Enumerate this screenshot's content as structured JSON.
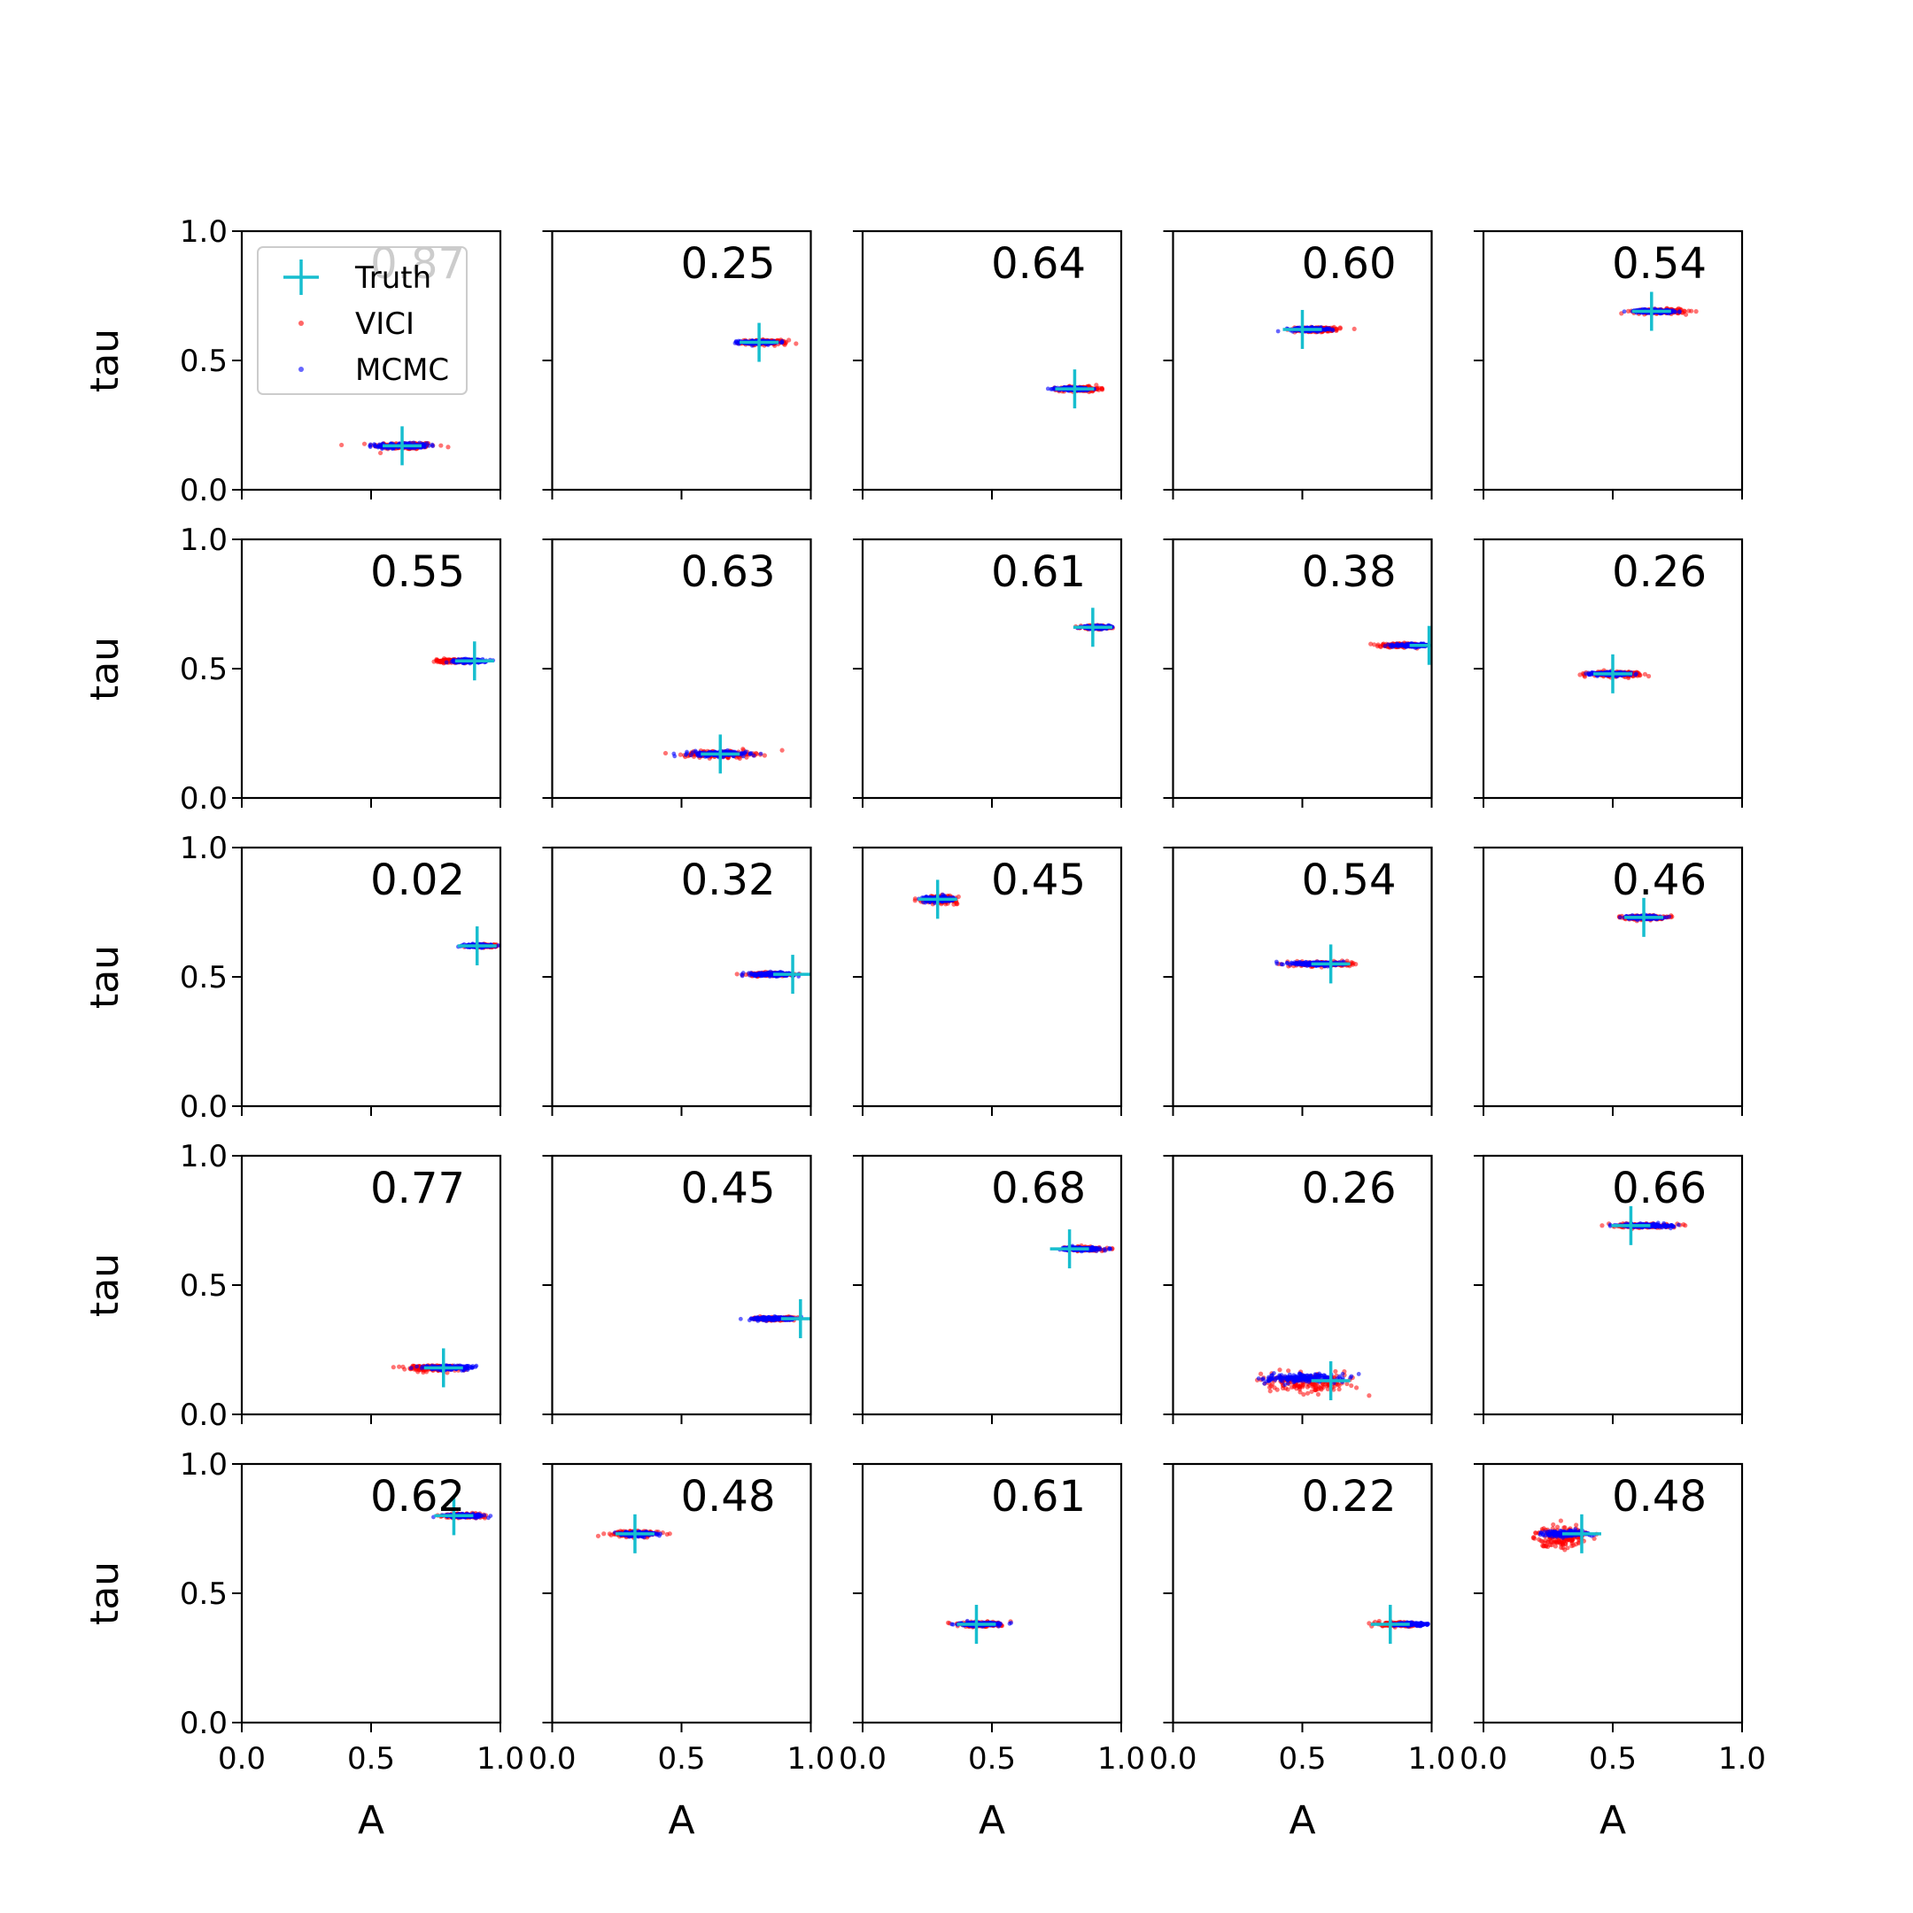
{
  "chart_data": {
    "type": "scatter",
    "grid": false,
    "rows": 5,
    "cols": 5,
    "xlabel": "A",
    "ylabel": "tau",
    "xlim": [
      0.0,
      1.0
    ],
    "ylim": [
      0.0,
      1.0
    ],
    "xticks": [
      "0.0",
      "0.5",
      "1.0"
    ],
    "yticks": [
      "0.0",
      "0.5",
      "1.0"
    ],
    "legend": {
      "placement": "top-left of first panel",
      "entries": [
        {
          "label": "Truth",
          "color": "#17becf",
          "marker": "plus"
        },
        {
          "label": "VICI",
          "color": "#ff0000",
          "marker": "dot"
        },
        {
          "label": "MCMC",
          "color": "#0000ff",
          "marker": "dot"
        }
      ]
    },
    "colors": {
      "truth": "#17becf",
      "vici": "#ff0000",
      "mcmc": "#0000ff"
    },
    "panels": [
      {
        "overlap": "0.87",
        "truth": [
          0.62,
          0.17
        ],
        "vici": {
          "center": [
            0.63,
            0.17
          ],
          "spread": [
            0.11,
            0.012
          ]
        },
        "mcmc": {
          "center": [
            0.62,
            0.17
          ],
          "spread": [
            0.09,
            0.009
          ]
        }
      },
      {
        "overlap": "0.25",
        "truth": [
          0.8,
          0.57
        ],
        "vici": {
          "center": [
            0.82,
            0.57
          ],
          "spread": [
            0.08,
            0.008
          ]
        },
        "mcmc": {
          "center": [
            0.79,
            0.57
          ],
          "spread": [
            0.06,
            0.006
          ]
        }
      },
      {
        "overlap": "0.64",
        "truth": [
          0.82,
          0.39
        ],
        "vici": {
          "center": [
            0.84,
            0.39
          ],
          "spread": [
            0.07,
            0.008
          ]
        },
        "mcmc": {
          "center": [
            0.82,
            0.39
          ],
          "spread": [
            0.06,
            0.006
          ]
        }
      },
      {
        "overlap": "0.60",
        "truth": [
          0.5,
          0.62
        ],
        "vici": {
          "center": [
            0.56,
            0.62
          ],
          "spread": [
            0.08,
            0.008
          ]
        },
        "mcmc": {
          "center": [
            0.53,
            0.62
          ],
          "spread": [
            0.07,
            0.006
          ]
        }
      },
      {
        "overlap": "0.54",
        "truth": [
          0.65,
          0.69
        ],
        "vici": {
          "center": [
            0.68,
            0.69
          ],
          "spread": [
            0.09,
            0.008
          ]
        },
        "mcmc": {
          "center": [
            0.66,
            0.69
          ],
          "spread": [
            0.07,
            0.006
          ]
        }
      },
      {
        "overlap": "0.55",
        "truth": [
          0.9,
          0.53
        ],
        "vici": {
          "center": [
            0.82,
            0.53
          ],
          "spread": [
            0.06,
            0.006
          ]
        },
        "mcmc": {
          "center": [
            0.88,
            0.53
          ],
          "spread": [
            0.06,
            0.006
          ]
        }
      },
      {
        "overlap": "0.63",
        "truth": [
          0.65,
          0.17
        ],
        "vici": {
          "center": [
            0.65,
            0.17
          ],
          "spread": [
            0.12,
            0.012
          ]
        },
        "mcmc": {
          "center": [
            0.64,
            0.17
          ],
          "spread": [
            0.1,
            0.009
          ]
        }
      },
      {
        "overlap": "0.61",
        "truth": [
          0.89,
          0.66
        ],
        "vici": {
          "center": [
            0.9,
            0.66
          ],
          "spread": [
            0.05,
            0.006
          ]
        },
        "mcmc": {
          "center": [
            0.9,
            0.66
          ],
          "spread": [
            0.05,
            0.005
          ]
        }
      },
      {
        "overlap": "0.38",
        "truth": [
          0.99,
          0.59
        ],
        "vici": {
          "center": [
            0.88,
            0.59
          ],
          "spread": [
            0.07,
            0.006
          ]
        },
        "mcmc": {
          "center": [
            0.93,
            0.59
          ],
          "spread": [
            0.06,
            0.005
          ]
        }
      },
      {
        "overlap": "0.26",
        "truth": [
          0.5,
          0.48
        ],
        "vici": {
          "center": [
            0.51,
            0.48
          ],
          "spread": [
            0.09,
            0.008
          ]
        },
        "mcmc": {
          "center": [
            0.49,
            0.48
          ],
          "spread": [
            0.07,
            0.006
          ]
        }
      },
      {
        "overlap": "0.02",
        "truth": [
          0.91,
          0.62
        ],
        "vici": {
          "center": [
            0.94,
            0.62
          ],
          "spread": [
            0.04,
            0.005
          ]
        },
        "mcmc": {
          "center": [
            0.91,
            0.62
          ],
          "spread": [
            0.05,
            0.005
          ]
        }
      },
      {
        "overlap": "0.32",
        "truth": [
          0.93,
          0.51
        ],
        "vici": {
          "center": [
            0.85,
            0.51
          ],
          "spread": [
            0.08,
            0.006
          ]
        },
        "mcmc": {
          "center": [
            0.85,
            0.51
          ],
          "spread": [
            0.08,
            0.006
          ]
        }
      },
      {
        "overlap": "0.45",
        "truth": [
          0.29,
          0.8
        ],
        "vici": {
          "center": [
            0.3,
            0.8
          ],
          "spread": [
            0.06,
            0.012
          ]
        },
        "mcmc": {
          "center": [
            0.29,
            0.8
          ],
          "spread": [
            0.05,
            0.01
          ]
        }
      },
      {
        "overlap": "0.54",
        "truth": [
          0.61,
          0.55
        ],
        "vici": {
          "center": [
            0.58,
            0.55
          ],
          "spread": [
            0.1,
            0.008
          ]
        },
        "mcmc": {
          "center": [
            0.56,
            0.55
          ],
          "spread": [
            0.09,
            0.007
          ]
        }
      },
      {
        "overlap": "0.46",
        "truth": [
          0.62,
          0.73
        ],
        "vici": {
          "center": [
            0.62,
            0.73
          ],
          "spread": [
            0.07,
            0.007
          ]
        },
        "mcmc": {
          "center": [
            0.62,
            0.73
          ],
          "spread": [
            0.06,
            0.006
          ]
        }
      },
      {
        "overlap": "0.77",
        "truth": [
          0.78,
          0.18
        ],
        "vici": {
          "center": [
            0.74,
            0.18
          ],
          "spread": [
            0.1,
            0.01
          ]
        },
        "mcmc": {
          "center": [
            0.8,
            0.18
          ],
          "spread": [
            0.09,
            0.008
          ]
        }
      },
      {
        "overlap": "0.45",
        "truth": [
          0.96,
          0.37
        ],
        "vici": {
          "center": [
            0.86,
            0.37
          ],
          "spread": [
            0.07,
            0.006
          ]
        },
        "mcmc": {
          "center": [
            0.86,
            0.37
          ],
          "spread": [
            0.08,
            0.006
          ]
        }
      },
      {
        "overlap": "0.68",
        "truth": [
          0.8,
          0.64
        ],
        "vici": {
          "center": [
            0.86,
            0.64
          ],
          "spread": [
            0.06,
            0.006
          ]
        },
        "mcmc": {
          "center": [
            0.85,
            0.64
          ],
          "spread": [
            0.06,
            0.006
          ]
        }
      },
      {
        "overlap": "0.26",
        "truth": [
          0.61,
          0.13
        ],
        "vici": {
          "center": [
            0.52,
            0.12
          ],
          "spread": [
            0.16,
            0.03
          ]
        },
        "mcmc": {
          "center": [
            0.5,
            0.14
          ],
          "spread": [
            0.14,
            0.015
          ]
        }
      },
      {
        "overlap": "0.66",
        "truth": [
          0.57,
          0.73
        ],
        "vici": {
          "center": [
            0.62,
            0.73
          ],
          "spread": [
            0.09,
            0.007
          ]
        },
        "mcmc": {
          "center": [
            0.63,
            0.73
          ],
          "spread": [
            0.09,
            0.006
          ]
        }
      },
      {
        "overlap": "0.62",
        "truth": [
          0.82,
          0.8
        ],
        "vici": {
          "center": [
            0.86,
            0.8
          ],
          "spread": [
            0.07,
            0.007
          ]
        },
        "mcmc": {
          "center": [
            0.86,
            0.8
          ],
          "spread": [
            0.07,
            0.006
          ]
        }
      },
      {
        "overlap": "0.48",
        "truth": [
          0.32,
          0.73
        ],
        "vici": {
          "center": [
            0.32,
            0.73
          ],
          "spread": [
            0.08,
            0.01
          ]
        },
        "mcmc": {
          "center": [
            0.33,
            0.73
          ],
          "spread": [
            0.06,
            0.008
          ]
        }
      },
      {
        "overlap": "0.61",
        "truth": [
          0.44,
          0.38
        ],
        "vici": {
          "center": [
            0.45,
            0.38
          ],
          "spread": [
            0.08,
            0.008
          ]
        },
        "mcmc": {
          "center": [
            0.45,
            0.38
          ],
          "spread": [
            0.07,
            0.006
          ]
        }
      },
      {
        "overlap": "0.22",
        "truth": [
          0.84,
          0.38
        ],
        "vici": {
          "center": [
            0.88,
            0.38
          ],
          "spread": [
            0.07,
            0.007
          ]
        },
        "mcmc": {
          "center": [
            0.92,
            0.38
          ],
          "spread": [
            0.06,
            0.005
          ]
        }
      },
      {
        "overlap": "0.48",
        "truth": [
          0.38,
          0.73
        ],
        "vici": {
          "center": [
            0.3,
            0.72
          ],
          "spread": [
            0.09,
            0.035
          ]
        },
        "mcmc": {
          "center": [
            0.32,
            0.73
          ],
          "spread": [
            0.08,
            0.01
          ]
        }
      }
    ]
  }
}
